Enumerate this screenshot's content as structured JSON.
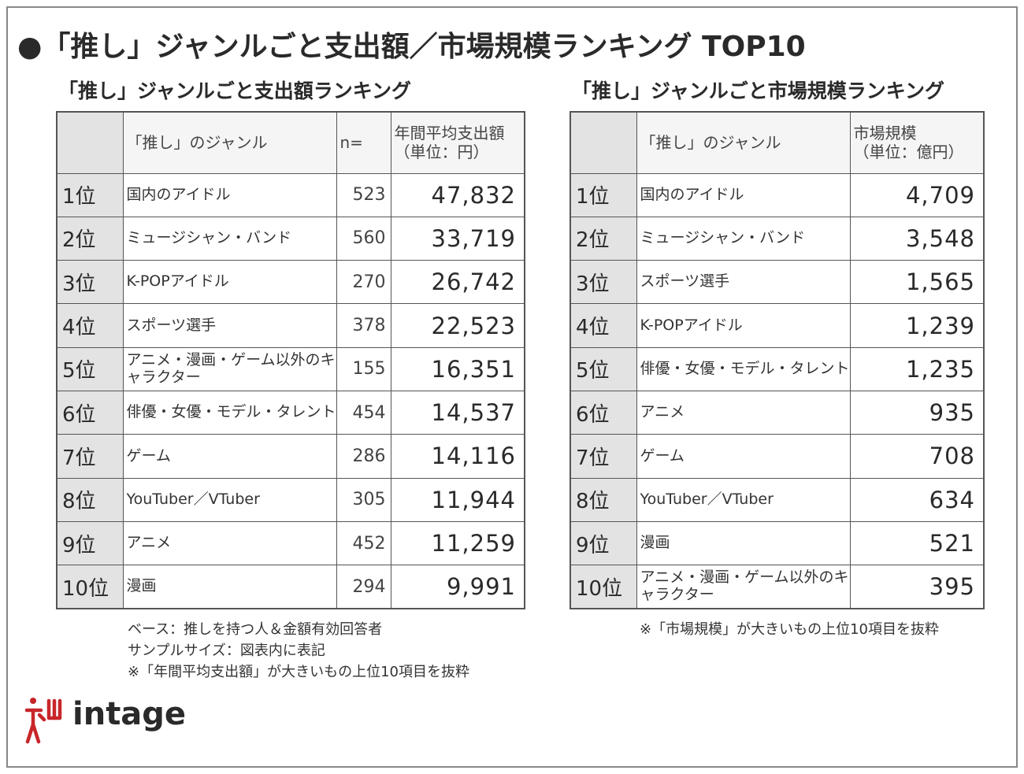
{
  "title": "●「推し」ジャンルごと支出額／市場規模ランキング TOP10",
  "colors": {
    "header_bg": "#f5f5f5",
    "rank_bg": "#e3e3e3",
    "border": "#555555",
    "logo_red": "#c8262a"
  },
  "left_table": {
    "title": "「推し」ジャンルごと支出額ランキング",
    "headers": {
      "rank": "",
      "genre": "「推し」のジャンル",
      "n": "n=",
      "value_line1": "年間平均支出額",
      "value_line2": "（単位：円）"
    },
    "rows": [
      {
        "rank": "1位",
        "genre": "国内のアイドル",
        "n": "523",
        "value": "47,832"
      },
      {
        "rank": "2位",
        "genre": "ミュージシャン・バンド",
        "n": "560",
        "value": "33,719"
      },
      {
        "rank": "3位",
        "genre": "K-POPアイドル",
        "n": "270",
        "value": "26,742"
      },
      {
        "rank": "4位",
        "genre": "スポーツ選手",
        "n": "378",
        "value": "22,523"
      },
      {
        "rank": "5位",
        "genre": "アニメ・漫画・ゲーム以外のキャラクター",
        "n": "155",
        "value": "16,351"
      },
      {
        "rank": "6位",
        "genre": "俳優・女優・モデル・タレント",
        "n": "454",
        "value": "14,537"
      },
      {
        "rank": "7位",
        "genre": "ゲーム",
        "n": "286",
        "value": "14,116"
      },
      {
        "rank": "8位",
        "genre": "YouTuber／VTuber",
        "n": "305",
        "value": "11,944"
      },
      {
        "rank": "9位",
        "genre": "アニメ",
        "n": "452",
        "value": "11,259"
      },
      {
        "rank": "10位",
        "genre": "漫画",
        "n": "294",
        "value": "9,991"
      }
    ],
    "notes": [
      "ベース：推しを持つ人＆金額有効回答者",
      "サンプルサイズ：図表内に表記",
      "※「年間平均支出額」が大きいもの上位10項目を抜粋"
    ]
  },
  "right_table": {
    "title": "「推し」ジャンルごと市場規模ランキング",
    "headers": {
      "rank": "",
      "genre": "「推し」のジャンル",
      "value_line1": "市場規模",
      "value_line2": "（単位：億円）"
    },
    "rows": [
      {
        "rank": "1位",
        "genre": "国内のアイドル",
        "value": "4,709"
      },
      {
        "rank": "2位",
        "genre": "ミュージシャン・バンド",
        "value": "3,548"
      },
      {
        "rank": "3位",
        "genre": "スポーツ選手",
        "value": "1,565"
      },
      {
        "rank": "4位",
        "genre": "K-POPアイドル",
        "value": "1,239"
      },
      {
        "rank": "5位",
        "genre": "俳優・女優・モデル・タレント",
        "value": "1,235"
      },
      {
        "rank": "6位",
        "genre": "アニメ",
        "value": "935"
      },
      {
        "rank": "7位",
        "genre": "ゲーム",
        "value": "708"
      },
      {
        "rank": "8位",
        "genre": "YouTuber／VTuber",
        "value": "634"
      },
      {
        "rank": "9位",
        "genre": "漫画",
        "value": "521"
      },
      {
        "rank": "10位",
        "genre": "アニメ・漫画・ゲーム以外のキャラクター",
        "value": "395"
      }
    ],
    "notes": [
      "※「市場規模」が大きいもの上位10項目を抜粋"
    ]
  },
  "logo": {
    "text": "intage",
    "icon": "intage-figure-logo-icon"
  },
  "chart_data": [
    {
      "type": "table",
      "title": "「推し」ジャンルごと支出額ランキング",
      "columns": [
        "",
        "「推し」のジャンル",
        "n=",
        "年間平均支出額（単位：円）"
      ],
      "rows": [
        [
          "1位",
          "国内のアイドル",
          523,
          47832
        ],
        [
          "2位",
          "ミュージシャン・バンド",
          560,
          33719
        ],
        [
          "3位",
          "K-POPアイドル",
          270,
          26742
        ],
        [
          "4位",
          "スポーツ選手",
          378,
          22523
        ],
        [
          "5位",
          "アニメ・漫画・ゲーム以外のキャラクター",
          155,
          16351
        ],
        [
          "6位",
          "俳優・女優・モデル・タレント",
          454,
          14537
        ],
        [
          "7位",
          "ゲーム",
          286,
          14116
        ],
        [
          "8位",
          "YouTuber／VTuber",
          305,
          11944
        ],
        [
          "9位",
          "アニメ",
          452,
          11259
        ],
        [
          "10位",
          "漫画",
          294,
          9991
        ]
      ]
    },
    {
      "type": "table",
      "title": "「推し」ジャンルごと市場規模ランキング",
      "columns": [
        "",
        "「推し」のジャンル",
        "市場規模（単位：億円）"
      ],
      "rows": [
        [
          "1位",
          "国内のアイドル",
          4709
        ],
        [
          "2位",
          "ミュージシャン・バンド",
          3548
        ],
        [
          "3位",
          "スポーツ選手",
          1565
        ],
        [
          "4位",
          "K-POPアイドル",
          1239
        ],
        [
          "5位",
          "俳優・女優・モデル・タレント",
          1235
        ],
        [
          "6位",
          "アニメ",
          935
        ],
        [
          "7位",
          "ゲーム",
          708
        ],
        [
          "8位",
          "YouTuber／VTuber",
          634
        ],
        [
          "9位",
          "漫画",
          521
        ],
        [
          "10位",
          "アニメ・漫画・ゲーム以外のキャラクター",
          395
        ]
      ]
    }
  ]
}
